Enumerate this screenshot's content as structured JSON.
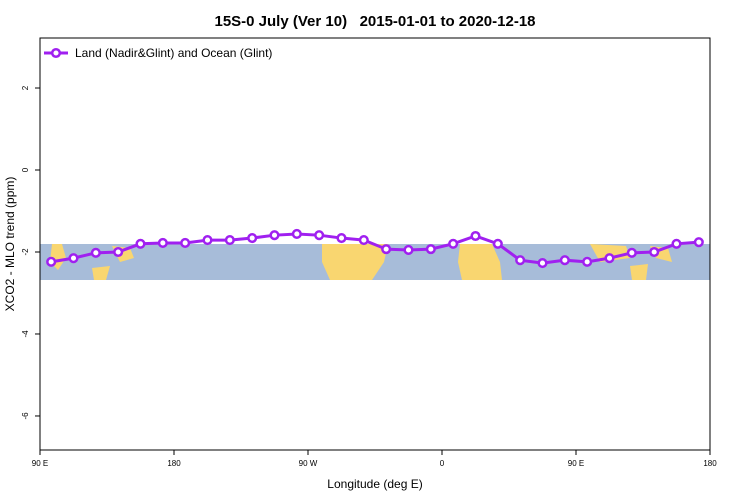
{
  "chart_data": {
    "type": "line",
    "title": "15S-0 July (Ver 10)   2015-01-01 to 2020-12-18",
    "x_label": "Longitude (deg E)",
    "y_label": "XCO2 - MLO trend (ppm)",
    "x": [
      97.5,
      112.5,
      127.5,
      142.5,
      157.5,
      172.5,
      187.5,
      202.5,
      217.5,
      232.5,
      247.5,
      262.5,
      277.5,
      292.5,
      307.5,
      322.5,
      337.5,
      352.5,
      367.5,
      382.5,
      397.5,
      412.5,
      427.5,
      442.5,
      457.5,
      472.5,
      487.5,
      502.5,
      517.5,
      532.5
    ],
    "series": [
      {
        "name": "Land (Nadir&Glint) and Ocean (Glint)",
        "color": "#a020f0",
        "values": [
          -2.24,
          -2.15,
          -2.02,
          -2.0,
          -1.8,
          -1.78,
          -1.78,
          -1.71,
          -1.71,
          -1.66,
          -1.59,
          -1.56,
          -1.59,
          -1.66,
          -1.71,
          -1.93,
          -1.95,
          -1.93,
          -1.8,
          -1.61,
          -1.8,
          -2.2,
          -2.27,
          -2.2,
          -2.24,
          -2.15,
          -2.02,
          -2.0,
          -1.8,
          -1.76
        ]
      }
    ],
    "xlim": [
      90,
      540
    ],
    "xticks": [
      {
        "value": 90,
        "label": "90 E"
      },
      {
        "value": 180,
        "label": "180"
      },
      {
        "value": 270,
        "label": "90 W"
      },
      {
        "value": 360,
        "label": "0"
      },
      {
        "value": 450,
        "label": "90 E"
      },
      {
        "value": 540,
        "label": "180"
      }
    ],
    "ylim": [
      -6.83,
      3.22
    ],
    "yticks": [
      -6,
      -4,
      -2,
      0,
      2
    ],
    "legend": "top-left"
  }
}
